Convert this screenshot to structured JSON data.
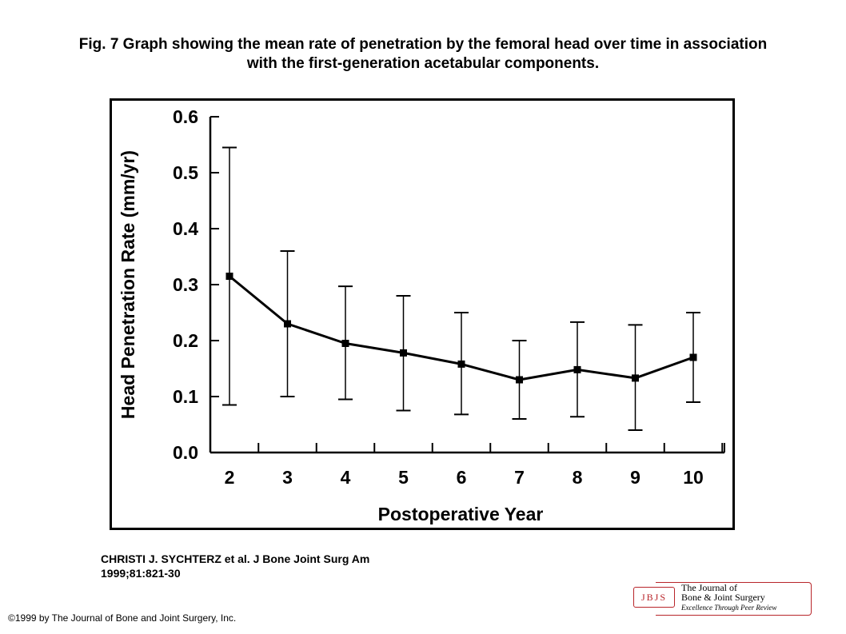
{
  "header": {
    "title_line1": "Fig. 7 Graph showing the mean rate of penetration by the femoral head over time in association",
    "title_line2": "with the first-generation acetabular components."
  },
  "citation": {
    "line1": "CHRISTI J. SYCHTERZ et al. J Bone Joint Surg Am",
    "line2": "1999;81:821-30"
  },
  "copyright": "©1999 by The Journal of Bone and Joint Surgery, Inc.",
  "logo": {
    "badge": "JBJS",
    "line1": "The Journal of",
    "line2": "Bone & Joint Surgery",
    "tagline": "Excellence Through Peer Review",
    "color": "#b8252a"
  },
  "chart_data": {
    "type": "line",
    "title": "",
    "xlabel": "Postoperative Year",
    "ylabel": "Head Penetration Rate (mm/yr)",
    "ylim": [
      0,
      0.6
    ],
    "yticks": [
      "0.0",
      "0.1",
      "0.2",
      "0.3",
      "0.4",
      "0.5",
      "0.6"
    ],
    "grid": false,
    "legend": "none",
    "x": [
      2,
      3,
      4,
      5,
      6,
      7,
      8,
      9,
      10
    ],
    "series": [
      {
        "values": [
          0.315,
          0.23,
          0.195,
          0.178,
          0.158,
          0.13,
          0.148,
          0.133,
          0.17
        ],
        "error_low": [
          0.085,
          0.1,
          0.095,
          0.075,
          0.068,
          0.06,
          0.064,
          0.04,
          0.09
        ],
        "error_high": [
          0.545,
          0.36,
          0.297,
          0.28,
          0.25,
          0.2,
          0.233,
          0.228,
          0.25
        ],
        "color": "#000000",
        "marker": "square"
      }
    ]
  }
}
